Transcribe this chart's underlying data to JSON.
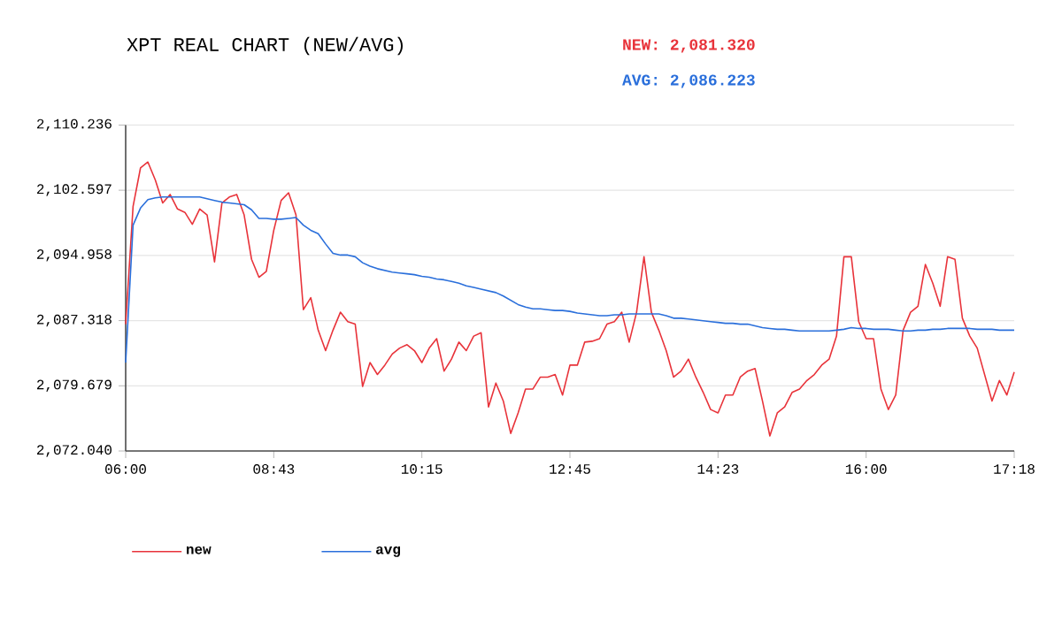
{
  "chart_data": {
    "type": "line",
    "title": "XPT REAL CHART (NEW/AVG)",
    "annotations": [
      "NEW: 2,081.320",
      "AVG: 2,086.223"
    ],
    "categories": [
      "06:00",
      null,
      null,
      null,
      null,
      null,
      null,
      null,
      null,
      null,
      null,
      null,
      null,
      null,
      null,
      null,
      null,
      null,
      null,
      null,
      "08:43",
      null,
      null,
      null,
      null,
      null,
      null,
      null,
      null,
      null,
      null,
      null,
      null,
      null,
      null,
      null,
      null,
      null,
      null,
      null,
      "10:15",
      null,
      null,
      null,
      null,
      null,
      null,
      null,
      null,
      null,
      null,
      null,
      null,
      null,
      null,
      null,
      null,
      null,
      null,
      null,
      "12:45",
      null,
      null,
      null,
      null,
      null,
      null,
      null,
      null,
      null,
      null,
      null,
      null,
      null,
      null,
      null,
      null,
      null,
      null,
      null,
      "14:23",
      null,
      null,
      null,
      null,
      null,
      null,
      null,
      null,
      null,
      null,
      null,
      null,
      null,
      null,
      null,
      null,
      null,
      null,
      null,
      "16:00",
      null,
      null,
      null,
      null,
      null,
      null,
      null,
      null,
      null,
      null,
      null,
      null,
      null,
      null,
      null,
      null,
      null,
      null,
      null,
      "17:18"
    ],
    "ylim": [
      2072.04,
      2110.236
    ],
    "yticks": [
      {
        "value": 2072.04,
        "label": "2,072.040"
      },
      {
        "value": 2079.679,
        "label": "2,079.679"
      },
      {
        "value": 2087.318,
        "label": "2,087.318"
      },
      {
        "value": 2094.958,
        "label": "2,094.958"
      },
      {
        "value": 2102.597,
        "label": "2,102.597"
      },
      {
        "value": 2110.236,
        "label": "2,110.236"
      }
    ],
    "grid": "y",
    "legend": "bottom left",
    "marker": "none",
    "line_style": "solid",
    "series": [
      {
        "name": "new",
        "color": "#e8333a",
        "values": [
          2086.9,
          2100.7,
          2105.2,
          2105.9,
          2103.8,
          2101.1,
          2102.1,
          2100.4,
          2100.0,
          2098.6,
          2100.4,
          2099.7,
          2094.2,
          2101.1,
          2101.8,
          2102.1,
          2099.7,
          2094.5,
          2092.4,
          2093.1,
          2097.9,
          2101.4,
          2102.3,
          2099.7,
          2088.6,
          2090.0,
          2086.2,
          2083.8,
          2086.2,
          2088.3,
          2087.2,
          2086.9,
          2079.6,
          2082.4,
          2081.0,
          2082.1,
          2083.4,
          2084.1,
          2084.5,
          2083.8,
          2082.4,
          2084.1,
          2085.2,
          2081.4,
          2082.8,
          2084.8,
          2083.8,
          2085.5,
          2085.9,
          2077.2,
          2080.0,
          2077.9,
          2074.1,
          2076.5,
          2079.3,
          2079.3,
          2080.7,
          2080.7,
          2081.0,
          2078.6,
          2082.1,
          2082.1,
          2084.8,
          2084.9,
          2085.2,
          2086.9,
          2087.2,
          2088.3,
          2084.8,
          2088.3,
          2094.8,
          2088.3,
          2086.2,
          2083.8,
          2080.7,
          2081.4,
          2082.8,
          2080.7,
          2078.9,
          2076.9,
          2076.5,
          2078.6,
          2078.6,
          2080.7,
          2081.4,
          2081.7,
          2077.9,
          2073.8,
          2076.5,
          2077.2,
          2078.9,
          2079.3,
          2080.3,
          2081.0,
          2082.1,
          2082.8,
          2085.5,
          2094.8,
          2094.8,
          2087.2,
          2085.2,
          2085.2,
          2079.3,
          2076.9,
          2078.6,
          2086.2,
          2088.3,
          2089.0,
          2093.9,
          2091.7,
          2089.0,
          2094.8,
          2094.5,
          2087.6,
          2085.5,
          2084.1,
          2081.0,
          2077.9,
          2080.3,
          2078.6,
          2081.3
        ]
      },
      {
        "name": "avg",
        "color": "#2a6fdb",
        "values": [
          2082.4,
          2098.5,
          2100.5,
          2101.5,
          2101.7,
          2101.8,
          2101.8,
          2101.8,
          2101.8,
          2101.8,
          2101.8,
          2101.6,
          2101.4,
          2101.2,
          2101.1,
          2101.0,
          2100.9,
          2100.3,
          2099.3,
          2099.3,
          2099.2,
          2099.2,
          2099.3,
          2099.4,
          2098.5,
          2097.9,
          2097.5,
          2096.3,
          2095.2,
          2095.0,
          2095.0,
          2094.8,
          2094.1,
          2093.7,
          2093.4,
          2093.2,
          2093.0,
          2092.9,
          2092.8,
          2092.7,
          2092.5,
          2092.4,
          2092.2,
          2092.1,
          2091.9,
          2091.7,
          2091.4,
          2091.2,
          2091.0,
          2090.8,
          2090.6,
          2090.2,
          2089.7,
          2089.2,
          2088.9,
          2088.7,
          2088.7,
          2088.6,
          2088.5,
          2088.5,
          2088.4,
          2088.2,
          2088.1,
          2088.0,
          2087.9,
          2087.9,
          2088.0,
          2088.0,
          2088.1,
          2088.1,
          2088.1,
          2088.1,
          2088.1,
          2087.9,
          2087.6,
          2087.6,
          2087.5,
          2087.4,
          2087.3,
          2087.2,
          2087.1,
          2087.0,
          2087.0,
          2086.9,
          2086.9,
          2086.7,
          2086.5,
          2086.4,
          2086.3,
          2086.3,
          2086.2,
          2086.1,
          2086.1,
          2086.1,
          2086.1,
          2086.1,
          2086.2,
          2086.3,
          2086.5,
          2086.4,
          2086.4,
          2086.3,
          2086.3,
          2086.3,
          2086.2,
          2086.1,
          2086.1,
          2086.2,
          2086.2,
          2086.3,
          2086.3,
          2086.4,
          2086.4,
          2086.4,
          2086.4,
          2086.3,
          2086.3,
          2086.3,
          2086.2,
          2086.2,
          2086.2
        ]
      }
    ]
  }
}
